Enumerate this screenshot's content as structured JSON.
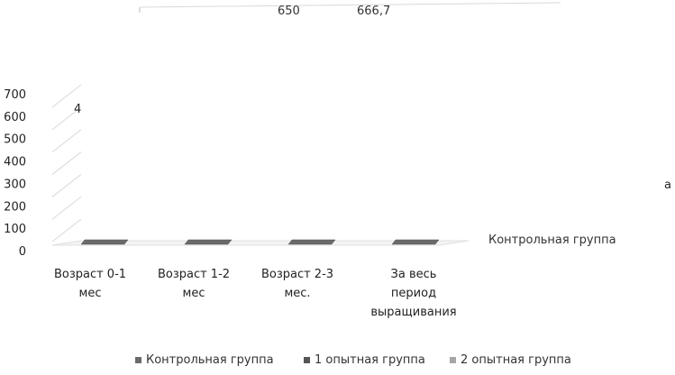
{
  "chart_data": {
    "type": "bar",
    "categories": [
      "Возраст 0-1 мес",
      "Возраст 1-2 мес",
      "Возраст 2-3 мес.",
      "За весь период выращивания"
    ],
    "category_lines": [
      [
        "Возраст 0-1",
        "мес"
      ],
      [
        "Возраст 1-2",
        "мес"
      ],
      [
        "Возраст 2-3",
        "мес."
      ],
      [
        "За весь",
        "период",
        "выращивания"
      ]
    ],
    "y_ticks": [
      "0",
      "100",
      "200",
      "300",
      "400",
      "500",
      "600",
      "700"
    ],
    "ylim": [
      0,
      700
    ],
    "series": [
      {
        "name": "Контрольная группа",
        "color": "#6b6b6b"
      },
      {
        "name": "1 опытная группа",
        "color": "#555555"
      },
      {
        "name": "2 опытная группа",
        "color": "#a6a6a6"
      }
    ],
    "annotations": {
      "top_value_1": "650",
      "top_value_2": "666,7",
      "left_value": "4",
      "right_fragment": "а",
      "right_legend_fragment": "Контрольная группа"
    },
    "grid": true,
    "legend_position": "bottom"
  }
}
